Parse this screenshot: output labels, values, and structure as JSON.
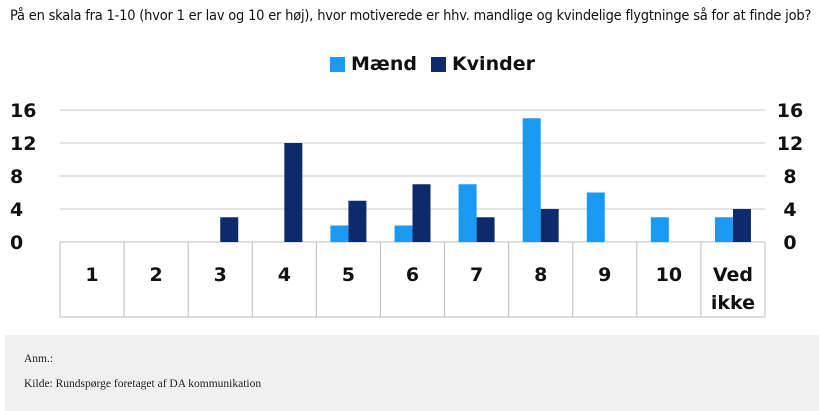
{
  "title": "På en skala fra 1-10 (hvor 1 er lav og 10 er høj), hvor motiverede er hhv. mandlige og kvindelige flygtninge så for at finde job?",
  "footer": {
    "note": "Anm.:",
    "source": "Kilde: Rundspørge foretaget af DA kommunikation"
  },
  "colors": {
    "maend": "#1a9af5",
    "kvinder": "#0d2b6b",
    "grid": "#c8c8c8"
  },
  "chart_data": {
    "type": "bar",
    "categories": [
      "1",
      "2",
      "3",
      "4",
      "5",
      "6",
      "7",
      "8",
      "9",
      "10",
      "Ved ikke"
    ],
    "series": [
      {
        "name": "Mænd",
        "values": [
          0,
          0,
          0,
          0,
          2,
          2,
          7,
          15,
          6,
          3,
          3
        ]
      },
      {
        "name": "Kvinder",
        "values": [
          0,
          0,
          3,
          12,
          5,
          7,
          3,
          4,
          0,
          0,
          4
        ]
      }
    ],
    "yticks": [
      0,
      4,
      8,
      12,
      16
    ],
    "ylim": [
      0,
      16
    ],
    "legend": "top-center",
    "grid": true
  }
}
